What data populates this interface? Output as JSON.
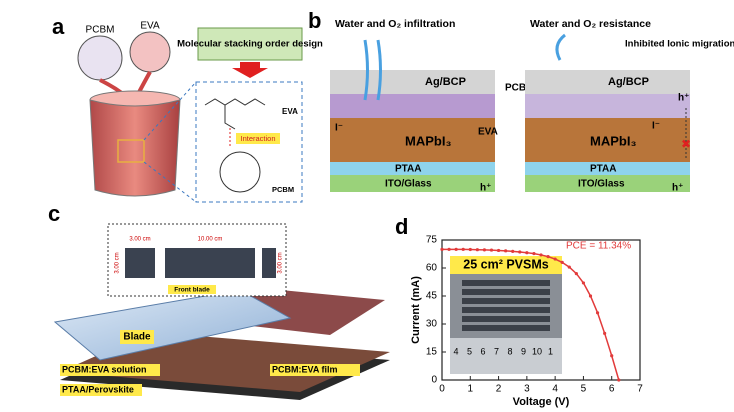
{
  "panels": {
    "a": {
      "label": "a",
      "balloons": [
        "PCBM",
        "EVA"
      ],
      "design_box": "Molecular stacking order design",
      "molecule_labels": [
        "EVA",
        "Interaction",
        "PCBM"
      ]
    },
    "b": {
      "label": "b",
      "left_title": "Water and O₂ infiltration",
      "right_title": "Water and O₂ resistance",
      "note": "Inhibited Ionic migration",
      "layers": [
        "Ag/BCP",
        "MAPbI₃",
        "PTAA",
        "ITO/Glass"
      ],
      "middle_labels": [
        "PCBM",
        "EVA"
      ],
      "hole": "h⁺",
      "iodide": "I⁻"
    },
    "c": {
      "label": "c",
      "dimensions": [
        "3.00 cm",
        "10.00 cm",
        "3.00 cm",
        "3.00 cm"
      ],
      "inset_caption": "Front blade",
      "labels": [
        "Blade",
        "PCBM:EVA solution",
        "PTAA/Perovskite",
        "PCBM:EVA film"
      ]
    },
    "d": {
      "label": "d"
    }
  },
  "chart_data": {
    "type": "line",
    "title": "25 cm² PVSMs",
    "annotation": "PCE = 11.34%",
    "x_label": "Voltage (V)",
    "y_label": "Current (mA)",
    "inset_ruler": [
      "4",
      "5",
      "6",
      "7",
      "8",
      "9",
      "10",
      "1"
    ],
    "x": [
      0,
      0.25,
      0.5,
      0.75,
      1,
      1.25,
      1.5,
      1.75,
      2,
      2.25,
      2.5,
      2.75,
      3,
      3.25,
      3.5,
      3.75,
      4,
      4.25,
      4.5,
      4.75,
      5,
      5.25,
      5.5,
      5.75,
      6,
      6.25
    ],
    "series": [
      {
        "name": "PCE = 11.34%",
        "color": "#e23b3b",
        "values": [
          70,
          70,
          70,
          70,
          69.9,
          69.8,
          69.7,
          69.6,
          69.4,
          69.2,
          68.9,
          68.6,
          68.2,
          67.7,
          67,
          66.1,
          64.8,
          63,
          60.5,
          57,
          52,
          45,
          36,
          25,
          13,
          0
        ]
      }
    ],
    "xlim": [
      0,
      7
    ],
    "xticks": [
      0,
      1,
      2,
      3,
      4,
      5,
      6,
      7
    ],
    "ylim": [
      0,
      75
    ],
    "yticks": [
      0,
      15,
      30,
      45,
      60,
      75
    ]
  }
}
